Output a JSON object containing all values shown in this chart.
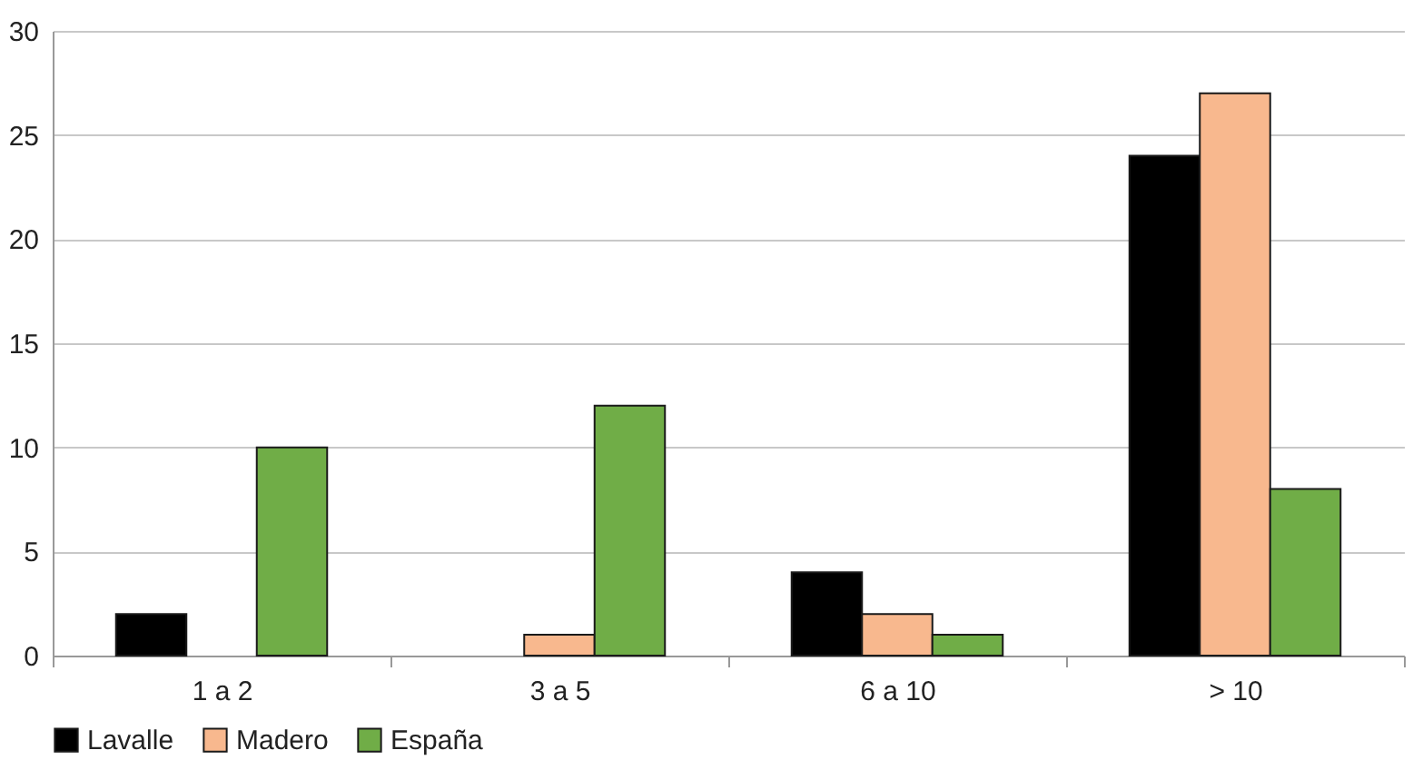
{
  "chart_data": {
    "type": "bar",
    "categories": [
      "1 a 2",
      "3 a 5",
      "6 a 10",
      "> 10"
    ],
    "series": [
      {
        "name": "Lavalle",
        "color": "#000000",
        "values": [
          2,
          0,
          4,
          24
        ]
      },
      {
        "name": "Madero",
        "color": "#f8b88e",
        "values": [
          0,
          1,
          2,
          27
        ]
      },
      {
        "name": "España",
        "color": "#70ad47",
        "values": [
          10,
          12,
          1,
          8
        ]
      }
    ],
    "ylim": [
      0,
      30
    ],
    "yticks": [
      0,
      5,
      10,
      15,
      20,
      25,
      30
    ],
    "grid": "y",
    "legend": "bottom"
  }
}
